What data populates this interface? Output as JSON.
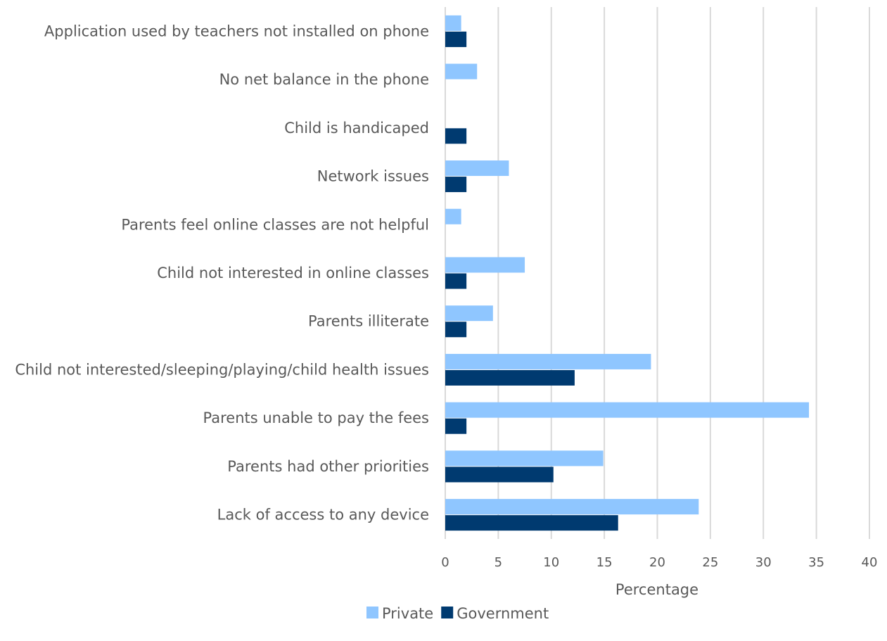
{
  "chart_data": {
    "type": "bar",
    "orientation": "horizontal",
    "categories": [
      "Application used by teachers not installed on phone",
      "No net balance in the phone",
      "Child is handicaped",
      "Network issues",
      "Parents feel online classes are not helpful",
      "Child not interested in online classes",
      "Parents illiterate",
      "Child not interested/sleeping/playing/child health issues",
      "Parents unable to pay the fees",
      "Parents had other priorities",
      "Lack of access to any device"
    ],
    "series": [
      {
        "name": "Private",
        "color": "#8fc6ff",
        "values": [
          1.5,
          3.0,
          0,
          6.0,
          1.5,
          7.5,
          4.5,
          19.4,
          34.3,
          14.9,
          23.9
        ]
      },
      {
        "name": "Government",
        "color": "#003a70",
        "values": [
          2.0,
          0,
          2.0,
          2.0,
          0,
          2.0,
          2.0,
          12.2,
          2.0,
          10.2,
          16.3
        ]
      }
    ],
    "xlabel": "Percentage",
    "ylabel": "",
    "xlim": [
      0,
      40
    ],
    "xticks": [
      "0",
      "5",
      "10",
      "15",
      "20",
      "25",
      "30",
      "35",
      "40"
    ],
    "grid": "vertical",
    "legend_position": "bottom"
  }
}
